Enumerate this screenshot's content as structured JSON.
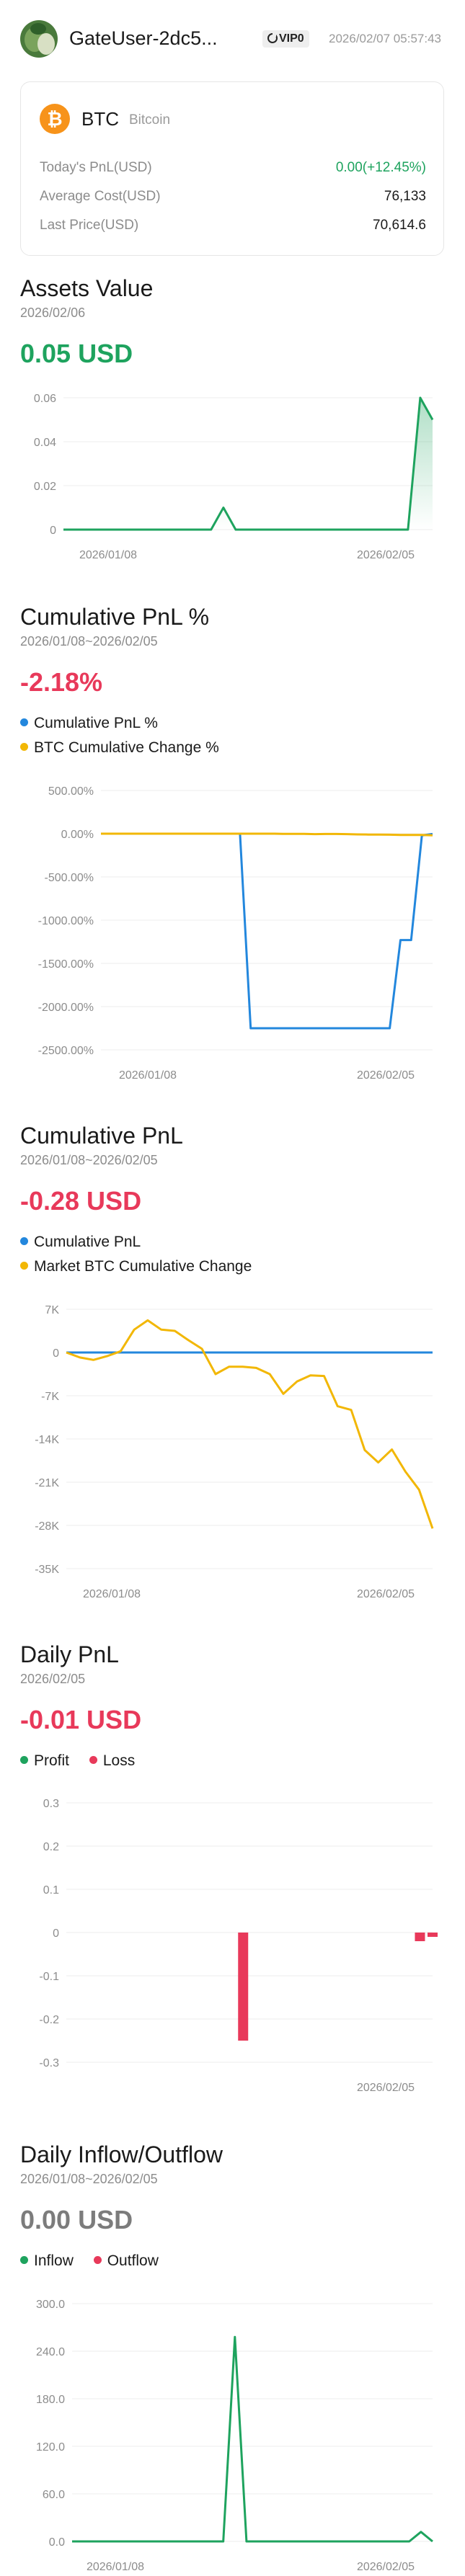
{
  "header": {
    "username": "GateUser-2dc5...",
    "vip_label": "VIP0",
    "datetime": "2026/02/07 05:57:43"
  },
  "coin_card": {
    "icon_letter": "₿",
    "symbol": "BTC",
    "name": "Bitcoin",
    "rows": [
      {
        "label": "Today's PnL(USD)",
        "value": "0.00(+12.45%)"
      },
      {
        "label": "Average Cost(USD)",
        "value": "76,133"
      },
      {
        "label": "Last Price(USD)",
        "value": "70,614.6"
      }
    ]
  },
  "colors": {
    "green": "#1ea35e",
    "red": "#e8395a",
    "blue": "#2387dd",
    "yellow": "#f2b705",
    "btc_orange": "#f7931a"
  },
  "sections": {
    "assets": {
      "title": "Assets Value",
      "date": "2026/02/06",
      "value": "0.05 USD"
    },
    "cum_pnl_pct": {
      "title": "Cumulative PnL %",
      "date": "2026/01/08~2026/02/05",
      "value": "-2.18%",
      "legend": [
        "Cumulative PnL %",
        "BTC Cumulative Change %"
      ]
    },
    "cum_pnl": {
      "title": "Cumulative PnL",
      "date": "2026/01/08~2026/02/05",
      "value": "-0.28 USD",
      "legend": [
        "Cumulative PnL",
        "Market BTC Cumulative Change"
      ]
    },
    "daily_pnl": {
      "title": "Daily PnL",
      "date": "2026/02/05",
      "value": "-0.01 USD",
      "legend": [
        "Profit",
        "Loss"
      ]
    },
    "inflow": {
      "title": "Daily Inflow/Outflow",
      "date": "2026/01/08~2026/02/05",
      "value": "0.00 USD",
      "legend": [
        "Inflow",
        "Outflow"
      ]
    }
  },
  "chart_data": [
    {
      "type": "area",
      "series": [
        {
          "values": [
            0,
            0,
            0,
            0,
            0,
            0,
            0,
            0,
            0,
            0,
            0,
            0,
            0,
            0.01,
            0,
            0,
            0,
            0,
            0,
            0,
            0,
            0,
            0,
            0,
            0,
            0,
            0,
            0,
            0,
            0.06,
            0.05
          ]
        }
      ],
      "yticks": [
        "0",
        "0.02",
        "0.04",
        "0.06"
      ],
      "ylim": [
        0,
        0.06
      ],
      "xticks": [
        "2026/01/08",
        "2026/02/05"
      ],
      "grid": true
    },
    {
      "type": "line",
      "series": [
        {
          "name": "Cumulative PnL %",
          "values": [
            0,
            0,
            0,
            0,
            0,
            0,
            0,
            0,
            0,
            0,
            0,
            0,
            0,
            0,
            -2250,
            -2250,
            -2250,
            -2250,
            -2250,
            -2250,
            -2250,
            -2250,
            -2250,
            -2250,
            -2250,
            -2250,
            -2250,
            -2250,
            -1230,
            -1230,
            -20,
            -2.18
          ]
        },
        {
          "name": "BTC Cumulative Change %",
          "values": [
            0,
            0,
            0,
            0,
            0,
            0,
            0,
            0,
            0,
            0,
            0,
            0,
            0,
            0,
            0,
            0,
            0,
            -2,
            -2,
            -2,
            -5,
            -3,
            -3,
            -5,
            -8,
            -10,
            -10,
            -12,
            -15,
            -15,
            -15,
            -18
          ]
        }
      ],
      "yticks": [
        "500.00%",
        "0.00%",
        "-500.00%",
        "-1000.00%",
        "-1500.00%",
        "-2000.00%",
        "-2500.00%"
      ],
      "ylim": [
        -2500,
        500
      ],
      "xticks": [
        "2026/01/08",
        "2026/02/05"
      ],
      "grid": true
    },
    {
      "type": "line",
      "series": [
        {
          "name": "Cumulative PnL",
          "values": [
            0,
            0,
            0,
            0,
            0,
            0,
            0,
            0,
            0,
            0,
            0,
            0,
            0,
            0,
            0,
            0,
            0,
            0,
            0,
            0,
            0,
            0,
            0,
            0,
            0,
            0,
            0,
            0,
            0,
            0,
            0,
            -0.28
          ]
        },
        {
          "name": "Market BTC Cumulative Change",
          "values": [
            0,
            -800,
            -1200,
            -600,
            200,
            3700,
            5200,
            3700,
            3500,
            2000,
            600,
            -3500,
            -2300,
            -2300,
            -2500,
            -3500,
            -6700,
            -4700,
            -3700,
            -3800,
            -8700,
            -9300,
            -15800,
            -17800,
            -15700,
            -19300,
            -22200,
            -28500
          ]
        }
      ],
      "yticks": [
        "7K",
        "0",
        "-7K",
        "-14K",
        "-21K",
        "-28K",
        "-35K"
      ],
      "ylim": [
        -35000,
        7000
      ],
      "xticks": [
        "2026/01/08",
        "2026/02/05"
      ],
      "grid": true
    },
    {
      "type": "bar",
      "series": [
        {
          "name": "Loss",
          "values": [
            0,
            0,
            0,
            0,
            0,
            0,
            0,
            0,
            0,
            0,
            0,
            0,
            0,
            0,
            -0.25,
            0,
            0,
            0,
            0,
            0,
            0,
            0,
            0,
            0,
            0,
            0,
            0,
            0,
            -0.02,
            -0.01
          ]
        }
      ],
      "yticks": [
        "0.3",
        "0.2",
        "0.1",
        "0",
        "-0.1",
        "-0.2",
        "-0.3"
      ],
      "ylim": [
        -0.3,
        0.3
      ],
      "xticks": [
        "2026/02/05"
      ],
      "grid": true
    },
    {
      "type": "line",
      "series": [
        {
          "name": "Inflow",
          "values": [
            0,
            0,
            0,
            0,
            0,
            0,
            0,
            0,
            0,
            0,
            0,
            0,
            0,
            0,
            258,
            0,
            0,
            0,
            0,
            0,
            0,
            0,
            0,
            0,
            0,
            0,
            0,
            0,
            0,
            0,
            12,
            0
          ]
        }
      ],
      "yticks": [
        "300.0",
        "240.0",
        "180.0",
        "120.0",
        "60.0",
        "0.0"
      ],
      "ylim": [
        0,
        300
      ],
      "xticks": [
        "2026/01/08",
        "2026/02/05"
      ],
      "grid": true
    }
  ]
}
